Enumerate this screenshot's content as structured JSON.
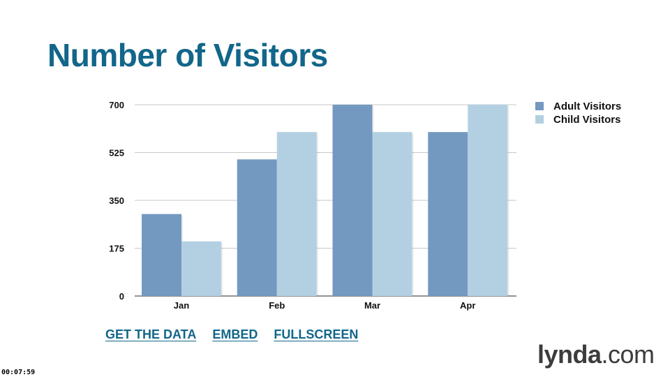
{
  "title": "Number of Visitors",
  "links": [
    "GET THE DATA",
    "EMBED",
    "FULLSCREEN"
  ],
  "brand": {
    "name": "lynda",
    "suffix": ".com"
  },
  "timestamp": "00:07:59",
  "colors": {
    "title": "#12668a",
    "adult": "#7499c1",
    "child": "#b3d0e2",
    "grid": "#c8c8c8"
  },
  "chart_data": {
    "type": "bar",
    "title": "Number of Visitors",
    "categories": [
      "Jan",
      "Feb",
      "Mar",
      "Apr"
    ],
    "series": [
      {
        "name": "Adult Visitors",
        "values": [
          300,
          500,
          700,
          600
        ]
      },
      {
        "name": "Child Visitors",
        "values": [
          200,
          600,
          600,
          700
        ]
      }
    ],
    "yticks": [
      0,
      175,
      350,
      525,
      700
    ],
    "ylim": [
      0,
      700
    ],
    "grid": true,
    "legend": "right"
  }
}
